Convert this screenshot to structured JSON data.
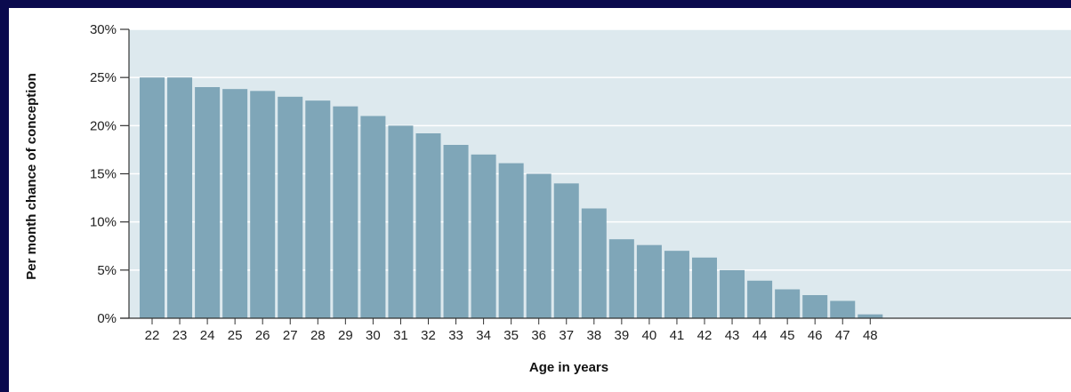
{
  "chart_data": {
    "type": "bar",
    "xlabel": "Age in years",
    "ylabel": "Per month chance of conception",
    "ylim": [
      0,
      30
    ],
    "yticks": [
      "0%",
      "5%",
      "10%",
      "15%",
      "20%",
      "25%",
      "30%"
    ],
    "grid": true,
    "categories": [
      "22",
      "23",
      "24",
      "25",
      "26",
      "27",
      "28",
      "29",
      "30",
      "31",
      "32",
      "33",
      "34",
      "35",
      "36",
      "37",
      "38",
      "39",
      "40",
      "41",
      "42",
      "43",
      "44",
      "45",
      "46",
      "47",
      "48"
    ],
    "values": [
      25,
      25,
      24,
      23.8,
      23.6,
      23,
      22.6,
      22,
      21,
      20,
      19.2,
      18,
      17,
      16.1,
      15,
      14,
      11.4,
      8.2,
      7.6,
      7,
      6.3,
      5,
      3.9,
      3,
      2.4,
      1.8,
      0.4
    ],
    "colors": {
      "bar": "#7fa6b8",
      "plot_bg": "#dde9ee",
      "grid": "#ffffff",
      "axis": "#333333"
    }
  }
}
